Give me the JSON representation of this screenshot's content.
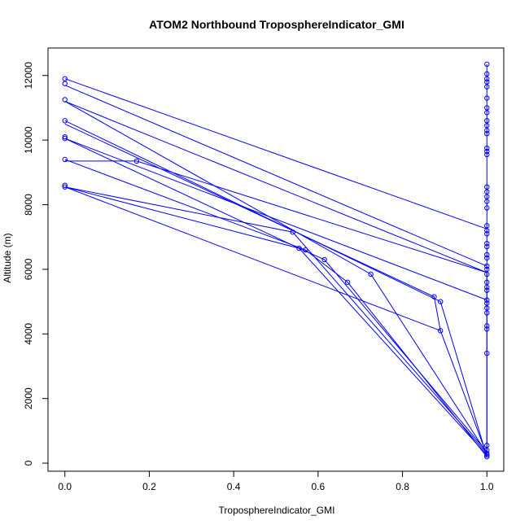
{
  "chart_data": {
    "type": "line",
    "title": "ATOM2 Northbound TroposphereIndicator_GMI",
    "xlabel": "TroposphereIndicator_GMI",
    "ylabel": "Altitude (m)",
    "xlim": [
      -0.04,
      1.04
    ],
    "ylim": [
      -250,
      12850
    ],
    "xticks": [
      0.0,
      0.2,
      0.4,
      0.6,
      0.8,
      1.0
    ],
    "xtick_labels": [
      "0.0",
      "0.2",
      "0.4",
      "0.6",
      "0.8",
      "1.0"
    ],
    "yticks": [
      0,
      2000,
      4000,
      6000,
      8000,
      10000,
      12000
    ],
    "ytick_labels": [
      "0",
      "2000",
      "4000",
      "6000",
      "8000",
      "10000",
      "12000"
    ],
    "grid": false,
    "color": "#0000ff",
    "marker": "open-circle",
    "segments": [
      {
        "x": [
          0.0,
          1.0
        ],
        "y": [
          11900,
          7250
        ]
      },
      {
        "x": [
          0.0,
          1.0
        ],
        "y": [
          11700,
          6100
        ]
      },
      {
        "x": [
          0.0,
          1.0,
          1.0
        ],
        "y": [
          11200,
          5900,
          300
        ]
      },
      {
        "x": [
          0.0,
          0.875,
          0.89,
          1.0
        ],
        "y": [
          10500,
          5150,
          4100,
          250
        ]
      },
      {
        "x": [
          0.0,
          1.0
        ],
        "y": [
          10050,
          5050
        ]
      },
      {
        "x": [
          0.0,
          0.17,
          1.0
        ],
        "y": [
          9350,
          9350,
          5900
        ]
      },
      {
        "x": [
          0.0,
          0.54,
          1.0
        ],
        "y": [
          8550,
          7150,
          300
        ]
      },
      {
        "x": [
          0.0,
          0.89
        ],
        "y": [
          8550,
          4100
        ]
      },
      {
        "x": [
          0.0,
          0.555,
          0.615,
          1.0
        ],
        "y": [
          10050,
          6650,
          6300,
          350
        ]
      },
      {
        "x": [
          0.0,
          0.57,
          0.67,
          1.0
        ],
        "y": [
          9400,
          6600,
          5600,
          200
        ]
      },
      {
        "x": [
          0.0,
          0.725,
          1.0
        ],
        "y": [
          11200,
          5850,
          300
        ]
      },
      {
        "x": [
          0.0,
          0.89,
          1.0
        ],
        "y": [
          10600,
          5000,
          200
        ]
      },
      {
        "x": [
          0.0,
          0.555,
          1.0
        ],
        "y": [
          8550,
          6650,
          250
        ]
      },
      {
        "x": [
          1.0,
          1.0
        ],
        "y": [
          200,
          12350
        ]
      }
    ],
    "points": [
      {
        "x": 0.0,
        "y": 11900
      },
      {
        "x": 0.0,
        "y": 11750
      },
      {
        "x": 0.0,
        "y": 11250
      },
      {
        "x": 0.0,
        "y": 10600
      },
      {
        "x": 0.0,
        "y": 10100
      },
      {
        "x": 0.0,
        "y": 10050
      },
      {
        "x": 0.0,
        "y": 9400
      },
      {
        "x": 0.0,
        "y": 8600
      },
      {
        "x": 0.0,
        "y": 8550
      },
      {
        "x": 0.17,
        "y": 9350
      },
      {
        "x": 0.54,
        "y": 7150
      },
      {
        "x": 0.555,
        "y": 6650
      },
      {
        "x": 0.57,
        "y": 6600
      },
      {
        "x": 0.615,
        "y": 6300
      },
      {
        "x": 0.67,
        "y": 5600
      },
      {
        "x": 0.725,
        "y": 5850
      },
      {
        "x": 0.875,
        "y": 5150
      },
      {
        "x": 0.89,
        "y": 5000
      },
      {
        "x": 0.89,
        "y": 4100
      },
      {
        "x": 1.0,
        "y": 12350
      },
      {
        "x": 1.0,
        "y": 12050
      },
      {
        "x": 1.0,
        "y": 11900
      },
      {
        "x": 1.0,
        "y": 11800
      },
      {
        "x": 1.0,
        "y": 11650
      },
      {
        "x": 1.0,
        "y": 11300
      },
      {
        "x": 1.0,
        "y": 11000
      },
      {
        "x": 1.0,
        "y": 10850
      },
      {
        "x": 1.0,
        "y": 10600
      },
      {
        "x": 1.0,
        "y": 10450
      },
      {
        "x": 1.0,
        "y": 10300
      },
      {
        "x": 1.0,
        "y": 10200
      },
      {
        "x": 1.0,
        "y": 9750
      },
      {
        "x": 1.0,
        "y": 9650
      },
      {
        "x": 1.0,
        "y": 9550
      },
      {
        "x": 1.0,
        "y": 8550
      },
      {
        "x": 1.0,
        "y": 8400
      },
      {
        "x": 1.0,
        "y": 8250
      },
      {
        "x": 1.0,
        "y": 8100
      },
      {
        "x": 1.0,
        "y": 7900
      },
      {
        "x": 1.0,
        "y": 7350
      },
      {
        "x": 1.0,
        "y": 7200
      },
      {
        "x": 1.0,
        "y": 7100
      },
      {
        "x": 1.0,
        "y": 6800
      },
      {
        "x": 1.0,
        "y": 6700
      },
      {
        "x": 1.0,
        "y": 6450
      },
      {
        "x": 1.0,
        "y": 6350
      },
      {
        "x": 1.0,
        "y": 6100
      },
      {
        "x": 1.0,
        "y": 6000
      },
      {
        "x": 1.0,
        "y": 5850
      },
      {
        "x": 1.0,
        "y": 5600
      },
      {
        "x": 1.0,
        "y": 5450
      },
      {
        "x": 1.0,
        "y": 5350
      },
      {
        "x": 1.0,
        "y": 5050
      },
      {
        "x": 1.0,
        "y": 4950
      },
      {
        "x": 1.0,
        "y": 4800
      },
      {
        "x": 1.0,
        "y": 4650
      },
      {
        "x": 1.0,
        "y": 4250
      },
      {
        "x": 1.0,
        "y": 4150
      },
      {
        "x": 1.0,
        "y": 3400
      },
      {
        "x": 1.0,
        "y": 550
      },
      {
        "x": 1.0,
        "y": 400
      },
      {
        "x": 1.0,
        "y": 300
      },
      {
        "x": 1.0,
        "y": 250
      },
      {
        "x": 1.0,
        "y": 200
      }
    ]
  }
}
